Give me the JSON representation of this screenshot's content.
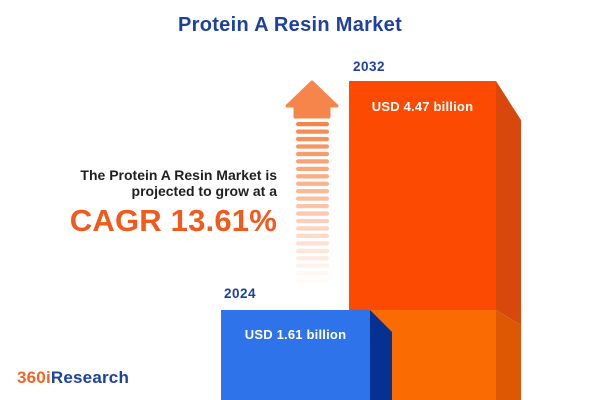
{
  "title": "Protein A Resin Market",
  "annotation": {
    "line1": "The Protein A Resin Market is",
    "line2": "projected to grow at a",
    "cagr": "CAGR 13.61%"
  },
  "bars": {
    "b2024": {
      "year": "2024",
      "value_label": "USD 1.61 billion"
    },
    "b2032": {
      "year": "2032",
      "value_label": "USD 4.47 billion"
    }
  },
  "logo": {
    "part1": "360i",
    "part2": "Research"
  },
  "colors": {
    "navy": "#1e41a0",
    "dark_text": "#1f1f1f",
    "accent_orange": "#f2591d",
    "logo_orange": "#f26522",
    "bar_orange_front_top": "#fc4a03",
    "bar_orange_front_bottom": "#fa6b02",
    "bar_orange_side_top": "#d8480c",
    "bar_orange_side_bottom": "#dd5803",
    "bar_blue_front": "#2e73e9",
    "bar_blue_side": "#053190",
    "arrow_orange": "#f6854c"
  },
  "chart_data": {
    "type": "bar",
    "categories": [
      "2024",
      "2032"
    ],
    "values": [
      1.61,
      4.47
    ],
    "unit": "USD billion",
    "value_labels": [
      "USD 1.61 billion",
      "USD 4.47 billion"
    ],
    "title": "Protein A Resin Market",
    "annotation": "The Protein A Resin Market is projected to grow at a CAGR 13.61%",
    "cagr_percent": 13.61,
    "legend": "none",
    "grid": false,
    "orientation": "vertical",
    "style": "3d-infographic"
  }
}
